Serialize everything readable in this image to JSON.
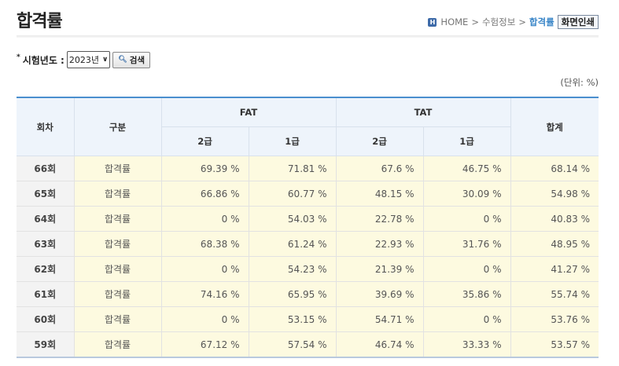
{
  "page": {
    "title": "합격률"
  },
  "breadcrumb": {
    "home_icon": "H",
    "home": "HOME",
    "sep": ">",
    "section": "수험정보",
    "current": "합격률",
    "print_label": "화면인쇄"
  },
  "search": {
    "star": "*",
    "label": "시험년도 :",
    "year": "2023년",
    "button_label": "검색"
  },
  "unit_note": "(단위: %)",
  "table": {
    "headers": {
      "round": "회차",
      "type": "구분",
      "fat": "FAT",
      "tat": "TAT",
      "total": "합계",
      "grade2": "2급",
      "grade1": "1급"
    },
    "rows": [
      {
        "round": "66회",
        "type": "합격률",
        "fat2": "69.39 %",
        "fat1": "71.81 %",
        "tat2": "67.6 %",
        "tat1": "46.75 %",
        "total": "68.14 %"
      },
      {
        "round": "65회",
        "type": "합격률",
        "fat2": "66.86 %",
        "fat1": "60.77 %",
        "tat2": "48.15 %",
        "tat1": "30.09 %",
        "total": "54.98 %"
      },
      {
        "round": "64회",
        "type": "합격률",
        "fat2": "0 %",
        "fat1": "54.03 %",
        "tat2": "22.78 %",
        "tat1": "0 %",
        "total": "40.83 %"
      },
      {
        "round": "63회",
        "type": "합격률",
        "fat2": "68.38 %",
        "fat1": "61.24 %",
        "tat2": "22.93 %",
        "tat1": "31.76 %",
        "total": "48.95 %"
      },
      {
        "round": "62회",
        "type": "합격률",
        "fat2": "0 %",
        "fat1": "54.23 %",
        "tat2": "21.39 %",
        "tat1": "0 %",
        "total": "41.27 %"
      },
      {
        "round": "61회",
        "type": "합격률",
        "fat2": "74.16 %",
        "fat1": "65.95 %",
        "tat2": "39.69 %",
        "tat1": "35.86 %",
        "total": "55.74 %"
      },
      {
        "round": "60회",
        "type": "합격률",
        "fat2": "0 %",
        "fat1": "53.15 %",
        "tat2": "54.71 %",
        "tat1": "0 %",
        "total": "53.76 %"
      },
      {
        "round": "59회",
        "type": "합격률",
        "fat2": "67.12 %",
        "fat1": "57.54 %",
        "tat2": "46.74 %",
        "tat1": "33.33 %",
        "total": "53.57 %"
      }
    ]
  }
}
